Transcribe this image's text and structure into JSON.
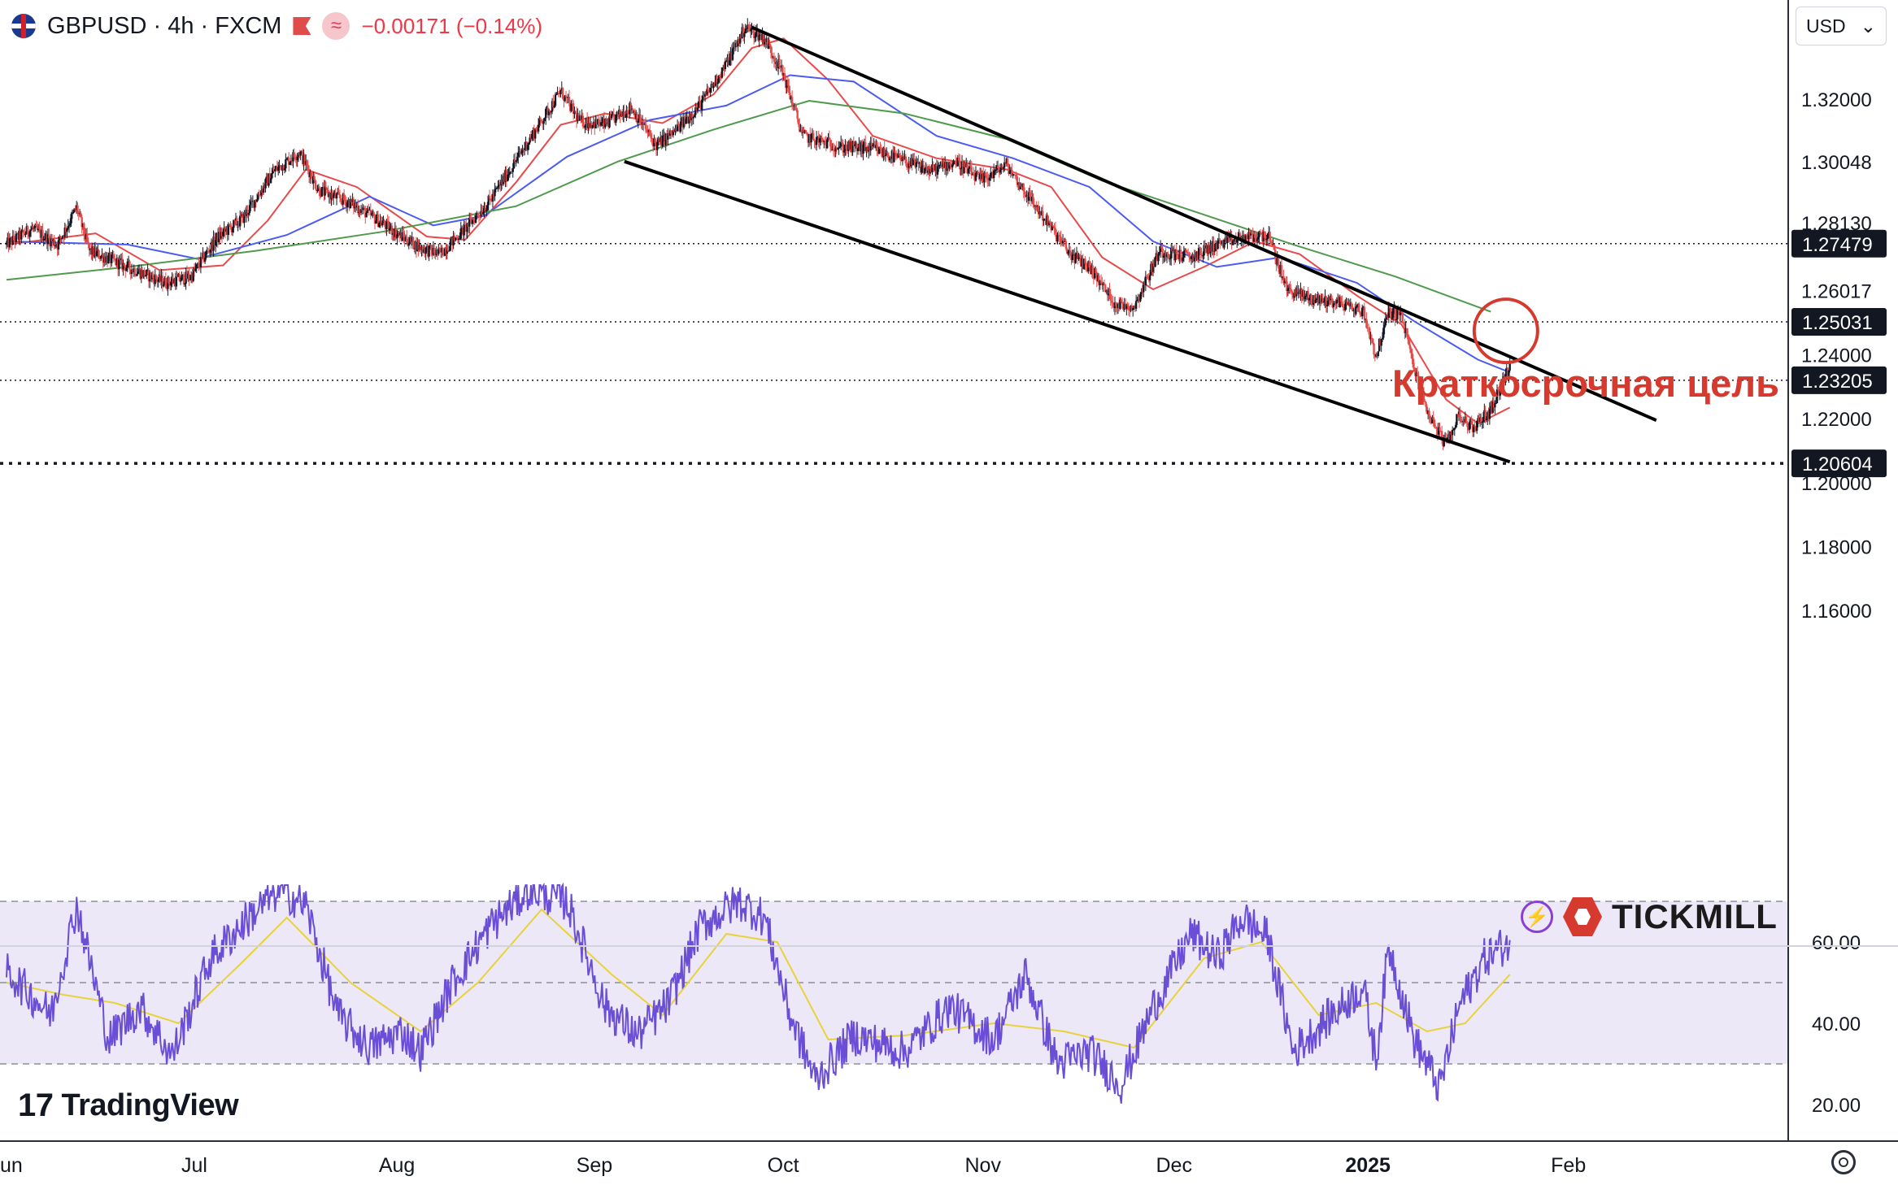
{
  "header": {
    "symbol": "GBPUSD · 4h · FXCM",
    "change": "−0.00171 (−0.14%)",
    "wave_glyph": "≈"
  },
  "currency_selector": {
    "value": "USD",
    "arrow": "⌄"
  },
  "branding": {
    "tradingview": "TradingView",
    "tradingview_mark": "17",
    "tickmill": "TICKMILL",
    "tickmill_bolt": "⚡"
  },
  "colors": {
    "up": "#131722",
    "down": "#e84a4a",
    "ma_fast": "#e84a4a",
    "ma_mid": "#4a5bf2",
    "ma_slow": "#4f9a4c",
    "rsi": "#6a4fd6",
    "rsi_signal": "#e8d23c",
    "rsi_band": "#ede8f7",
    "annotation": "#d63a2f",
    "channel": "#000000"
  },
  "chart_data": {
    "type": "candlestick",
    "title": "",
    "ylim": [
      1.142,
      1.352
    ],
    "y_ticks": [
      1.16,
      1.18,
      1.2,
      1.22,
      1.24,
      1.26017,
      1.2813,
      1.30048,
      1.32
    ],
    "y_tick_labels": [
      "1.16000",
      "1.18000",
      "1.20000",
      "1.22000",
      "1.24000",
      "1.26017",
      "1.28130",
      "1.30048",
      "1.32000"
    ],
    "x_ticks": [
      {
        "label": "un",
        "date": "2024-06-01"
      },
      {
        "label": "Jul",
        "date": "2024-07-01"
      },
      {
        "label": "Aug",
        "date": "2024-08-01"
      },
      {
        "label": "Sep",
        "date": "2024-09-01"
      },
      {
        "label": "Oct",
        "date": "2024-10-01"
      },
      {
        "label": "Nov",
        "date": "2024-11-01"
      },
      {
        "label": "Dec",
        "date": "2024-12-01"
      },
      {
        "label": "2025",
        "date": "2025-01-01"
      },
      {
        "label": "Feb",
        "date": "2025-02-01"
      }
    ],
    "price_path": [
      [
        "2024-06-01",
        1.2745
      ],
      [
        "2024-06-05",
        1.2795
      ],
      [
        "2024-06-09",
        1.2745
      ],
      [
        "2024-06-12",
        1.286
      ],
      [
        "2024-06-14",
        1.2725
      ],
      [
        "2024-06-20",
        1.2675
      ],
      [
        "2024-06-26",
        1.2625
      ],
      [
        "2024-06-30",
        1.2645
      ],
      [
        "2024-07-04",
        1.2765
      ],
      [
        "2024-07-08",
        1.2825
      ],
      [
        "2024-07-13",
        1.2975
      ],
      [
        "2024-07-17",
        1.3035
      ],
      [
        "2024-07-20",
        1.2915
      ],
      [
        "2024-07-25",
        1.2875
      ],
      [
        "2024-07-29",
        1.2825
      ],
      [
        "2024-08-02",
        1.277
      ],
      [
        "2024-08-05",
        1.2735
      ],
      [
        "2024-08-08",
        1.2715
      ],
      [
        "2024-08-12",
        1.2795
      ],
      [
        "2024-08-16",
        1.2885
      ],
      [
        "2024-08-21",
        1.304
      ],
      [
        "2024-08-27",
        1.3225
      ],
      [
        "2024-08-30",
        1.313
      ],
      [
        "2024-09-03",
        1.312
      ],
      [
        "2024-09-07",
        1.3175
      ],
      [
        "2024-09-11",
        1.3055
      ],
      [
        "2024-09-14",
        1.31
      ],
      [
        "2024-09-18",
        1.3185
      ],
      [
        "2024-09-22",
        1.331
      ],
      [
        "2024-09-25",
        1.3425
      ],
      [
        "2024-09-28",
        1.339
      ],
      [
        "2024-10-01",
        1.3275
      ],
      [
        "2024-10-04",
        1.3085
      ],
      [
        "2024-10-10",
        1.305
      ],
      [
        "2024-10-15",
        1.3045
      ],
      [
        "2024-10-20",
        1.3005
      ],
      [
        "2024-10-24",
        1.2975
      ],
      [
        "2024-10-28",
        1.3005
      ],
      [
        "2024-11-01",
        1.2945
      ],
      [
        "2024-11-05",
        1.2995
      ],
      [
        "2024-11-07",
        1.2935
      ],
      [
        "2024-11-11",
        1.2825
      ],
      [
        "2024-11-15",
        1.2715
      ],
      [
        "2024-11-18",
        1.2675
      ],
      [
        "2024-11-22",
        1.256
      ],
      [
        "2024-11-25",
        1.255
      ],
      [
        "2024-11-29",
        1.2725
      ],
      [
        "2024-12-04",
        1.2705
      ],
      [
        "2024-12-08",
        1.2745
      ],
      [
        "2024-12-12",
        1.2765
      ],
      [
        "2024-12-16",
        1.2775
      ],
      [
        "2024-12-19",
        1.2605
      ],
      [
        "2024-12-23",
        1.2575
      ],
      [
        "2024-12-27",
        1.2565
      ],
      [
        "2024-12-31",
        1.2535
      ],
      [
        "2025-01-02",
        1.2395
      ],
      [
        "2025-01-04",
        1.2535
      ],
      [
        "2025-01-06",
        1.2525
      ],
      [
        "2025-01-08",
        1.2355
      ],
      [
        "2025-01-10",
        1.2225
      ],
      [
        "2025-01-13",
        1.2115
      ],
      [
        "2025-01-15",
        1.2215
      ],
      [
        "2025-01-17",
        1.217
      ],
      [
        "2025-01-20",
        1.2225
      ],
      [
        "2025-01-22",
        1.2325
      ],
      [
        "2025-01-23",
        1.2355
      ]
    ],
    "series": [
      {
        "kind": "ma_fast",
        "points": [
          [
            "2024-06-01",
            1.2745
          ],
          [
            "2024-06-15",
            1.278
          ],
          [
            "2024-06-25",
            1.2665
          ],
          [
            "2024-07-05",
            1.268
          ],
          [
            "2024-07-12",
            1.282
          ],
          [
            "2024-07-18",
            1.298
          ],
          [
            "2024-07-26",
            1.2925
          ],
          [
            "2024-08-06",
            1.277
          ],
          [
            "2024-08-12",
            1.276
          ],
          [
            "2024-08-20",
            1.294
          ],
          [
            "2024-08-27",
            1.312
          ],
          [
            "2024-09-03",
            1.3155
          ],
          [
            "2024-09-12",
            1.3125
          ],
          [
            "2024-09-20",
            1.3215
          ],
          [
            "2024-09-26",
            1.336
          ],
          [
            "2024-10-01",
            1.339
          ],
          [
            "2024-10-08",
            1.326
          ],
          [
            "2024-10-15",
            1.3085
          ],
          [
            "2024-10-25",
            1.3015
          ],
          [
            "2024-11-05",
            1.298
          ],
          [
            "2024-11-12",
            1.2925
          ],
          [
            "2024-11-20",
            1.2705
          ],
          [
            "2024-11-28",
            1.2605
          ],
          [
            "2024-12-06",
            1.2675
          ],
          [
            "2024-12-14",
            1.2755
          ],
          [
            "2024-12-21",
            1.2715
          ],
          [
            "2024-12-30",
            1.2585
          ],
          [
            "2025-01-06",
            1.2495
          ],
          [
            "2025-01-13",
            1.226
          ],
          [
            "2025-01-18",
            1.2185
          ],
          [
            "2025-01-23",
            1.2235
          ]
        ]
      },
      {
        "kind": "ma_mid",
        "points": [
          [
            "2024-06-01",
            1.2755
          ],
          [
            "2024-06-20",
            1.2745
          ],
          [
            "2024-07-01",
            1.27
          ],
          [
            "2024-07-15",
            1.2775
          ],
          [
            "2024-07-28",
            1.2895
          ],
          [
            "2024-08-07",
            1.2805
          ],
          [
            "2024-08-15",
            1.2835
          ],
          [
            "2024-08-28",
            1.302
          ],
          [
            "2024-09-10",
            1.3135
          ],
          [
            "2024-09-22",
            1.318
          ],
          [
            "2024-10-02",
            1.3275
          ],
          [
            "2024-10-12",
            1.3255
          ],
          [
            "2024-10-25",
            1.3085
          ],
          [
            "2024-11-06",
            1.3015
          ],
          [
            "2024-11-18",
            1.2925
          ],
          [
            "2024-11-28",
            1.2755
          ],
          [
            "2024-12-08",
            1.2675
          ],
          [
            "2024-12-18",
            1.2705
          ],
          [
            "2024-12-30",
            1.2625
          ],
          [
            "2025-01-08",
            1.2505
          ],
          [
            "2025-01-18",
            1.2385
          ],
          [
            "2025-01-23",
            1.2345
          ]
        ]
      },
      {
        "kind": "ma_slow",
        "points": [
          [
            "2024-06-01",
            1.2635
          ],
          [
            "2024-06-20",
            1.2675
          ],
          [
            "2024-07-10",
            1.2725
          ],
          [
            "2024-07-30",
            1.2785
          ],
          [
            "2024-08-20",
            1.2865
          ],
          [
            "2024-09-05",
            1.3005
          ],
          [
            "2024-09-20",
            1.3105
          ],
          [
            "2024-10-05",
            1.3195
          ],
          [
            "2024-10-20",
            1.3155
          ],
          [
            "2024-11-05",
            1.3075
          ],
          [
            "2024-11-20",
            1.2945
          ],
          [
            "2024-12-05",
            1.2845
          ],
          [
            "2024-12-20",
            1.2745
          ],
          [
            "2025-01-05",
            1.2645
          ],
          [
            "2025-01-20",
            1.2535
          ]
        ]
      }
    ],
    "channel_lines": [
      {
        "from": [
          "2024-09-26",
          1.3425
        ],
        "to": [
          "2025-02-15",
          1.2195
        ]
      },
      {
        "from": [
          "2024-09-06",
          1.3005
        ],
        "to": [
          "2025-01-23",
          1.2065
        ]
      }
    ],
    "horizontal_levels": [
      {
        "value": 1.27479,
        "label": "1.27479",
        "style": "dotted"
      },
      {
        "value": 1.25031,
        "label": "1.25031",
        "style": "dotted"
      },
      {
        "value": 1.23205,
        "label": "1.23205",
        "style": "dotted"
      },
      {
        "value": 1.20604,
        "label": "1.20604",
        "style": "dotted-bold"
      }
    ],
    "target_circle": {
      "date": "2025-01-22",
      "value": 1.2475
    },
    "annotation": {
      "text": "Краткосрочная цель",
      "date": "2025-01-22",
      "value": 1.2675
    },
    "rsi": {
      "ylim": [
        15,
        75
      ],
      "y_ticks": [
        60,
        40,
        20
      ],
      "y_tick_labels": [
        "60.00",
        "40.00",
        "20.00"
      ],
      "band_upper": 70,
      "band_lower": 30,
      "midline": 50,
      "points": [
        [
          "2024-06-01",
          53
        ],
        [
          "2024-06-08",
          42
        ],
        [
          "2024-06-12",
          69
        ],
        [
          "2024-06-17",
          36
        ],
        [
          "2024-06-22",
          44
        ],
        [
          "2024-06-27",
          32
        ],
        [
          "2024-07-03",
          56
        ],
        [
          "2024-07-09",
          66
        ],
        [
          "2024-07-14",
          73
        ],
        [
          "2024-07-18",
          69
        ],
        [
          "2024-07-23",
          42
        ],
        [
          "2024-07-28",
          34
        ],
        [
          "2024-08-02",
          38
        ],
        [
          "2024-08-05",
          33
        ],
        [
          "2024-08-10",
          50
        ],
        [
          "2024-08-16",
          64
        ],
        [
          "2024-08-22",
          73
        ],
        [
          "2024-08-28",
          70
        ],
        [
          "2024-09-03",
          44
        ],
        [
          "2024-09-08",
          37
        ],
        [
          "2024-09-13",
          45
        ],
        [
          "2024-09-18",
          64
        ],
        [
          "2024-09-24",
          70
        ],
        [
          "2024-09-28",
          66
        ],
        [
          "2024-10-02",
          42
        ],
        [
          "2024-10-06",
          26
        ],
        [
          "2024-10-12",
          37
        ],
        [
          "2024-10-20",
          33
        ],
        [
          "2024-10-27",
          44
        ],
        [
          "2024-11-03",
          36
        ],
        [
          "2024-11-08",
          52
        ],
        [
          "2024-11-13",
          30
        ],
        [
          "2024-11-18",
          33
        ],
        [
          "2024-11-23",
          25
        ],
        [
          "2024-11-28",
          44
        ],
        [
          "2024-12-04",
          62
        ],
        [
          "2024-12-08",
          56
        ],
        [
          "2024-12-12",
          66
        ],
        [
          "2024-12-16",
          61
        ],
        [
          "2024-12-20",
          33
        ],
        [
          "2024-12-26",
          42
        ],
        [
          "2024-12-31",
          49
        ],
        [
          "2025-01-02",
          31
        ],
        [
          "2025-01-04",
          59
        ],
        [
          "2025-01-08",
          36
        ],
        [
          "2025-01-12",
          24
        ],
        [
          "2025-01-15",
          44
        ],
        [
          "2025-01-19",
          56
        ],
        [
          "2025-01-23",
          60
        ]
      ],
      "signal": [
        [
          "2024-06-01",
          50
        ],
        [
          "2024-06-10",
          47
        ],
        [
          "2024-06-18",
          45
        ],
        [
          "2024-06-28",
          40
        ],
        [
          "2024-07-08",
          55
        ],
        [
          "2024-07-15",
          66
        ],
        [
          "2024-07-25",
          50
        ],
        [
          "2024-08-05",
          38
        ],
        [
          "2024-08-14",
          50
        ],
        [
          "2024-08-24",
          68
        ],
        [
          "2024-09-04",
          52
        ],
        [
          "2024-09-12",
          42
        ],
        [
          "2024-09-22",
          62
        ],
        [
          "2024-09-30",
          60
        ],
        [
          "2024-10-08",
          36
        ],
        [
          "2024-10-20",
          37
        ],
        [
          "2024-11-03",
          40
        ],
        [
          "2024-11-14",
          38
        ],
        [
          "2024-11-25",
          34
        ],
        [
          "2024-12-06",
          56
        ],
        [
          "2024-12-15",
          60
        ],
        [
          "2024-12-24",
          42
        ],
        [
          "2025-01-02",
          45
        ],
        [
          "2025-01-10",
          38
        ],
        [
          "2025-01-16",
          40
        ],
        [
          "2025-01-23",
          52
        ]
      ]
    }
  }
}
